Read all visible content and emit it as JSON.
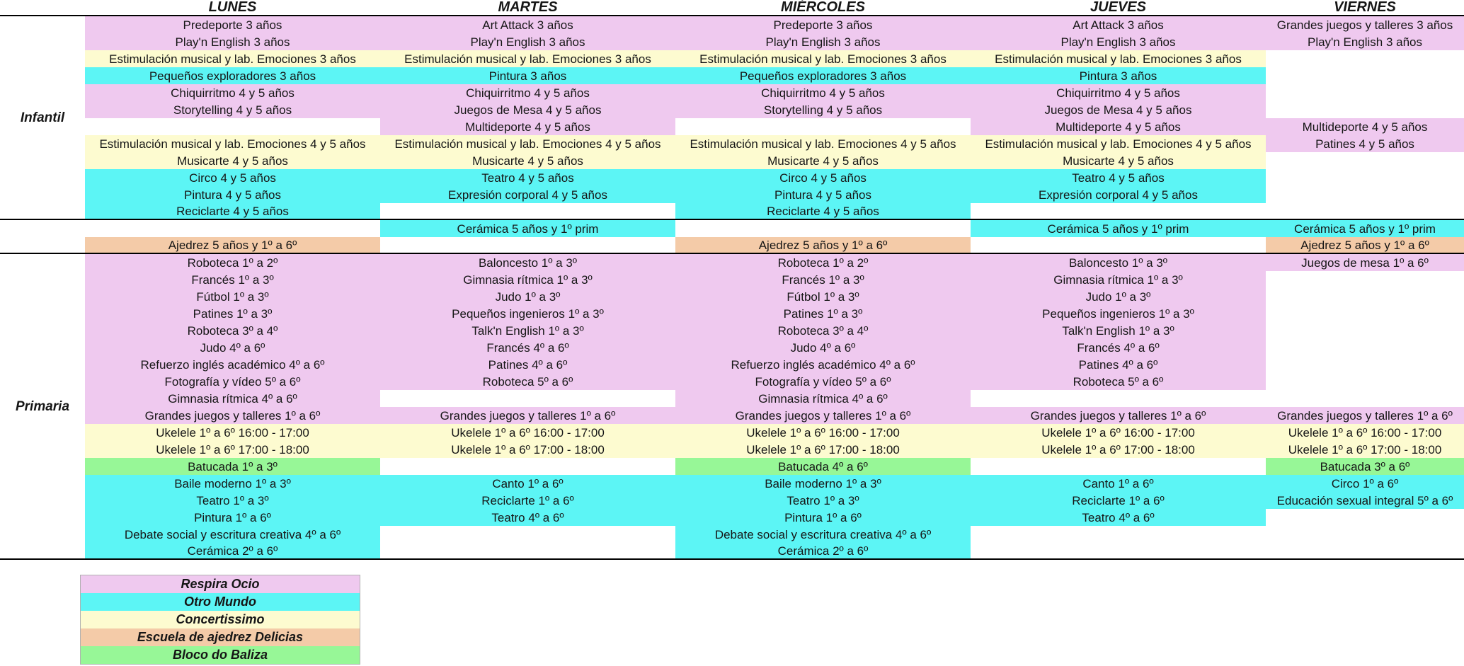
{
  "schedule": {
    "days": [
      "LUNES",
      "MARTES",
      "MIÉRCOLES",
      "JUEVES",
      "VIERNES"
    ],
    "sections": {
      "infantil": "Infantil",
      "mixed": "",
      "primaria": "Primaria"
    },
    "colors": {
      "pink": "#EFC9EF",
      "cyan": "#5CF5F5",
      "yellow": "#FDFBD0",
      "orange": "#F4CBA8",
      "green": "#97F797"
    },
    "rows": [
      {
        "section": "infantil",
        "color": "pink",
        "cells": [
          "Predeporte 3 años",
          "Art Attack 3 años",
          "Predeporte 3 años",
          "Art Attack 3 años",
          "Grandes juegos y talleres 3 años"
        ]
      },
      {
        "section": "infantil",
        "color": "pink",
        "cells": [
          "Play'n English 3 años",
          "Play'n English 3 años",
          "Play'n English 3 años",
          "Play'n English 3 años",
          "Play'n English 3 años"
        ]
      },
      {
        "section": "infantil",
        "color": "yellow",
        "cells": [
          "Estimulación musical y lab. Emociones 3 años",
          "Estimulación musical y lab. Emociones 3 años",
          "Estimulación musical y lab. Emociones 3 años",
          "Estimulación musical y lab. Emociones 3 años",
          ""
        ]
      },
      {
        "section": "infantil",
        "color": "cyan",
        "cells": [
          "Pequeños exploradores 3 años",
          "Pintura 3 años",
          "Pequeños exploradores 3 años",
          "Pintura 3 años",
          ""
        ]
      },
      {
        "section": "infantil",
        "color": "pink",
        "cells": [
          "Chiquirritmo 4 y 5 años",
          "Chiquirritmo 4 y 5 años",
          "Chiquirritmo 4 y 5 años",
          "Chiquirritmo 4 y 5 años",
          ""
        ]
      },
      {
        "section": "infantil",
        "color": "pink",
        "cells": [
          "Storytelling 4 y 5 años",
          "Juegos de Mesa 4 y 5 años",
          "Storytelling 4 y 5 años",
          "Juegos de Mesa 4 y 5 años",
          ""
        ]
      },
      {
        "section": "infantil",
        "color": "pink",
        "cells": [
          "",
          "Multideporte 4 y 5 años",
          "",
          "Multideporte 4 y 5 años",
          "Multideporte 4 y 5 años"
        ]
      },
      {
        "section": "infantil",
        "color": "yellow",
        "cell_colors": [
          null,
          null,
          null,
          null,
          "pink"
        ],
        "cells": [
          "Estimulación musical y lab. Emociones 4 y 5 años",
          "Estimulación musical y lab. Emociones 4 y 5 años",
          "Estimulación musical y lab. Emociones 4 y 5 años",
          "Estimulación musical y lab. Emociones 4 y 5 años",
          "Patines 4 y 5 años"
        ]
      },
      {
        "section": "infantil",
        "color": "yellow",
        "cells": [
          "Musicarte 4 y 5 años",
          "Musicarte 4 y 5 años",
          "Musicarte 4 y 5 años",
          "Musicarte 4 y 5 años",
          ""
        ]
      },
      {
        "section": "infantil",
        "color": "cyan",
        "cells": [
          "Circo 4 y 5 años",
          "Teatro 4 y 5 años",
          "Circo 4 y 5 años",
          "Teatro 4 y 5 años",
          ""
        ]
      },
      {
        "section": "infantil",
        "color": "cyan",
        "cells": [
          "Pintura 4 y 5 años",
          "Expresión corporal 4 y 5 años",
          "Pintura 4 y 5 años",
          "Expresión corporal 4 y 5 años",
          ""
        ]
      },
      {
        "section": "infantil",
        "color": "cyan",
        "cells": [
          "Reciclarte 4 y 5 años",
          "",
          "Reciclarte 4 y 5 años",
          "",
          ""
        ]
      },
      {
        "section": "mixed",
        "color": "cyan",
        "cells": [
          "",
          "Cerámica 5 años y 1º prim",
          "",
          "Cerámica 5 años y 1º prim",
          "Cerámica 5 años y 1º prim"
        ]
      },
      {
        "section": "mixed",
        "color": "orange",
        "cells": [
          "Ajedrez 5 años y 1º a 6º",
          "",
          "Ajedrez 5 años y 1º a 6º",
          "",
          "Ajedrez 5 años y 1º a 6º"
        ]
      },
      {
        "section": "primaria",
        "color": "pink",
        "cells": [
          "Roboteca 1º a 2º",
          "Baloncesto 1º a 3º",
          "Roboteca 1º a 2º",
          "Baloncesto 1º a 3º",
          "Juegos de mesa 1º a 6º"
        ]
      },
      {
        "section": "primaria",
        "color": "pink",
        "cells": [
          "Francés 1º a 3º",
          "Gimnasia rítmica 1º a 3º",
          "Francés 1º a 3º",
          "Gimnasia rítmica 1º a 3º",
          ""
        ]
      },
      {
        "section": "primaria",
        "color": "pink",
        "cells": [
          "Fútbol 1º a 3º",
          "Judo 1º a 3º",
          "Fútbol 1º a 3º",
          "Judo 1º a 3º",
          ""
        ]
      },
      {
        "section": "primaria",
        "color": "pink",
        "cells": [
          "Patines 1º a 3º",
          "Pequeños ingenieros 1º a 3º",
          "Patines 1º a 3º",
          "Pequeños ingenieros 1º a 3º",
          ""
        ]
      },
      {
        "section": "primaria",
        "color": "pink",
        "cells": [
          "Roboteca 3º a 4º",
          "Talk'n English 1º a 3º",
          "Roboteca 3º a 4º",
          "Talk'n English 1º a 3º",
          ""
        ]
      },
      {
        "section": "primaria",
        "color": "pink",
        "cells": [
          "Judo 4º a 6º",
          "Francés 4º a 6º",
          "Judo 4º a 6º",
          "Francés 4º a 6º",
          ""
        ]
      },
      {
        "section": "primaria",
        "color": "pink",
        "cells": [
          "Refuerzo inglés académico 4º a 6º",
          "Patines 4º a 6º",
          "Refuerzo inglés académico 4º a 6º",
          "Patines 4º a 6º",
          ""
        ]
      },
      {
        "section": "primaria",
        "color": "pink",
        "cells": [
          "Fotografía y vídeo 5º a 6º",
          "Roboteca 5º a 6º",
          "Fotografía y vídeo 5º a 6º",
          "Roboteca 5º a 6º",
          ""
        ]
      },
      {
        "section": "primaria",
        "color": "pink",
        "cells": [
          "Gimnasia rítmica 4º a 6º",
          "",
          "Gimnasia rítmica 4º a 6º",
          "",
          ""
        ]
      },
      {
        "section": "primaria",
        "color": "pink",
        "cells": [
          "Grandes juegos y talleres 1º a 6º",
          "Grandes juegos y talleres 1º a 6º",
          "Grandes juegos y talleres 1º a 6º",
          "Grandes juegos y talleres 1º a 6º",
          "Grandes juegos y talleres 1º a 6º"
        ]
      },
      {
        "section": "primaria",
        "color": "yellow",
        "cells": [
          "Ukelele 1º a 6º 16:00 - 17:00",
          "Ukelele 1º a 6º 16:00 - 17:00",
          "Ukelele 1º a 6º 16:00 - 17:00",
          "Ukelele 1º a 6º 16:00 - 17:00",
          "Ukelele 1º a 6º 16:00 - 17:00"
        ]
      },
      {
        "section": "primaria",
        "color": "yellow",
        "cells": [
          "Ukelele 1º a 6º 17:00 - 18:00",
          "Ukelele 1º a 6º 17:00 - 18:00",
          "Ukelele 1º a 6º 17:00 - 18:00",
          "Ukelele 1º a 6º 17:00 - 18:00",
          "Ukelele 1º a 6º 17:00 - 18:00"
        ]
      },
      {
        "section": "primaria",
        "color": "green",
        "cells": [
          "Batucada 1º a 3º",
          "",
          "Batucada 4º a 6º",
          "",
          "Batucada 3º a 6º"
        ]
      },
      {
        "section": "primaria",
        "color": "cyan",
        "cells": [
          "Baile moderno 1º a 3º",
          "Canto 1º a 6º",
          "Baile moderno 1º a 3º",
          "Canto 1º a 6º",
          "Circo 1º a 6º"
        ]
      },
      {
        "section": "primaria",
        "color": "cyan",
        "cells": [
          "Teatro 1º a 3º",
          "Reciclarte 1º a 6º",
          "Teatro 1º a 3º",
          "Reciclarte 1º a 6º",
          "Educación sexual integral 5º a 6º"
        ]
      },
      {
        "section": "primaria",
        "color": "cyan",
        "cells": [
          "Pintura 1º a 6º",
          "Teatro 4º a 6º",
          "Pintura 1º a 6º",
          "Teatro 4º a 6º",
          ""
        ]
      },
      {
        "section": "primaria",
        "color": "cyan",
        "cells": [
          "Debate social y escritura creativa 4º a 6º",
          "",
          "Debate social y escritura creativa 4º a 6º",
          "",
          ""
        ]
      },
      {
        "section": "primaria",
        "color": "cyan",
        "cells": [
          "Cerámica 2º a 6º",
          "",
          "Cerámica 2º a 6º",
          "",
          ""
        ]
      }
    ],
    "legend": {
      "items": [
        {
          "label": "Respira Ocio",
          "color": "pink"
        },
        {
          "label": "Otro Mundo",
          "color": "cyan"
        },
        {
          "label": "Concertissimo",
          "color": "yellow"
        },
        {
          "label": "Escuela de ajedrez Delicias",
          "color": "orange"
        },
        {
          "label": "Bloco do Baliza",
          "color": "green"
        }
      ]
    }
  }
}
